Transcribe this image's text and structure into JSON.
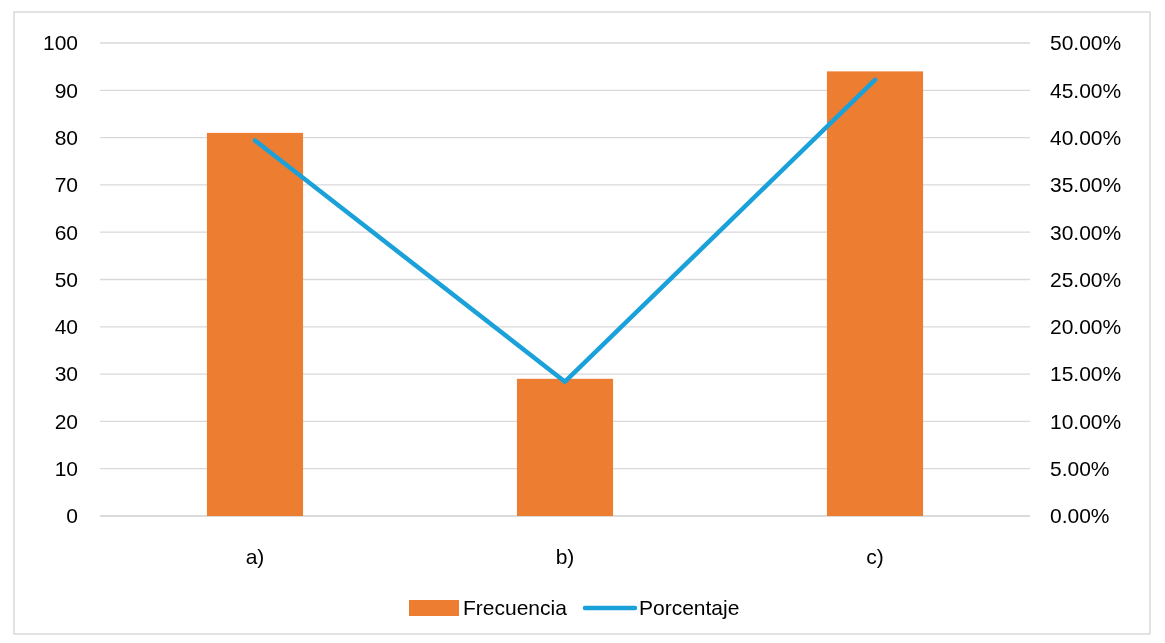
{
  "chart_data": {
    "type": "bar",
    "categories": [
      "a)",
      "b)",
      "c)"
    ],
    "series": [
      {
        "name": "Frecuencia",
        "color": "#ed7d31",
        "values": [
          81,
          29,
          94
        ]
      },
      {
        "name": "Porcentaje",
        "type": "line",
        "axis": "y2",
        "color": "#1ba1d9",
        "values": [
          39.7,
          14.2,
          46.1
        ]
      }
    ],
    "ylim": [
      0,
      100
    ],
    "yticks": [
      0,
      10,
      20,
      30,
      40,
      50,
      60,
      70,
      80,
      90,
      100
    ],
    "y2lim": [
      0,
      50
    ],
    "y2ticks": [
      {
        "value": 0,
        "label": "0.00%"
      },
      {
        "value": 5,
        "label": "5.00%"
      },
      {
        "value": 10,
        "label": "10.00%"
      },
      {
        "value": 15,
        "label": "15.00%"
      },
      {
        "value": 20,
        "label": "20.00%"
      },
      {
        "value": 25,
        "label": "25.00%"
      },
      {
        "value": 30,
        "label": "30.00%"
      },
      {
        "value": 35,
        "label": "35.00%"
      },
      {
        "value": 40,
        "label": "40.00%"
      },
      {
        "value": 45,
        "label": "45.00%"
      },
      {
        "value": 50,
        "label": "50.00%"
      }
    ],
    "grid": "y",
    "legend": "bottom",
    "marker": "none"
  }
}
